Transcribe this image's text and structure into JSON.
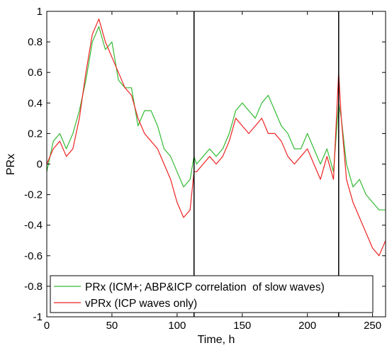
{
  "chart_data": {
    "type": "line",
    "title": "",
    "xlabel": "Time, h",
    "ylabel": "PRx",
    "xlim": [
      0,
      260
    ],
    "ylim": [
      -1,
      1
    ],
    "xticks": [
      0,
      50,
      100,
      150,
      200,
      250
    ],
    "yticks": [
      -1,
      -0.8,
      -0.6,
      -0.4,
      -0.2,
      0,
      0.2,
      0.4,
      0.6,
      0.8,
      1
    ],
    "ytick_labels": [
      "-1",
      "-0.8",
      "-0.6",
      "-0.4",
      "-0.2",
      "0",
      "0.2",
      "0.4",
      "0.6",
      "0.8",
      "1"
    ],
    "xtick_labels": [
      "0",
      "50",
      "100",
      "150",
      "200",
      "250"
    ],
    "vertical_lines": [
      113,
      224
    ],
    "grid": false,
    "legend_position": "bottom-left",
    "series": [
      {
        "name": "PRx (ICM+; ABP&ICP correlation  of slow waves)",
        "color": "#33bb33",
        "x": [
          0,
          5,
          10,
          15,
          20,
          25,
          30,
          35,
          40,
          45,
          50,
          55,
          60,
          65,
          70,
          75,
          80,
          85,
          90,
          95,
          100,
          105,
          110,
          113,
          115,
          120,
          125,
          130,
          135,
          140,
          145,
          150,
          155,
          160,
          165,
          170,
          175,
          180,
          185,
          190,
          195,
          200,
          205,
          210,
          215,
          220,
          224,
          226,
          230,
          235,
          240,
          245,
          250,
          255,
          260
        ],
        "values": [
          -0.05,
          0.15,
          0.2,
          0.1,
          0.2,
          0.35,
          0.55,
          0.8,
          0.9,
          0.75,
          0.8,
          0.55,
          0.5,
          0.5,
          0.25,
          0.35,
          0.35,
          0.25,
          0.1,
          0.05,
          -0.05,
          -0.15,
          -0.1,
          0.05,
          0.0,
          0.05,
          0.1,
          0.05,
          0.1,
          0.2,
          0.35,
          0.4,
          0.35,
          0.3,
          0.4,
          0.45,
          0.35,
          0.25,
          0.2,
          0.1,
          0.1,
          0.2,
          0.1,
          0.0,
          0.1,
          -0.05,
          0.4,
          0.3,
          0.0,
          -0.15,
          -0.1,
          -0.2,
          -0.25,
          -0.3,
          -0.3
        ]
      },
      {
        "name": "vPRx (ICP waves only)",
        "color": "#ee2222",
        "x": [
          0,
          5,
          10,
          15,
          20,
          25,
          30,
          35,
          40,
          45,
          50,
          55,
          60,
          65,
          70,
          75,
          80,
          85,
          90,
          95,
          100,
          105,
          110,
          113,
          115,
          120,
          125,
          130,
          135,
          140,
          145,
          150,
          155,
          160,
          165,
          170,
          175,
          180,
          185,
          190,
          195,
          200,
          205,
          210,
          215,
          220,
          224,
          226,
          230,
          235,
          240,
          245,
          250,
          255,
          260
        ],
        "values": [
          0.0,
          0.1,
          0.15,
          0.05,
          0.1,
          0.3,
          0.6,
          0.85,
          0.95,
          0.8,
          0.7,
          0.6,
          0.5,
          0.45,
          0.3,
          0.2,
          0.15,
          0.1,
          0.0,
          -0.1,
          -0.25,
          -0.35,
          -0.3,
          -0.05,
          -0.05,
          0.0,
          0.05,
          0.0,
          0.05,
          0.15,
          0.3,
          0.25,
          0.2,
          0.25,
          0.3,
          0.2,
          0.2,
          0.15,
          0.05,
          0.0,
          0.05,
          0.1,
          0.0,
          -0.1,
          0.05,
          -0.1,
          0.6,
          0.3,
          -0.1,
          -0.25,
          -0.35,
          -0.45,
          -0.55,
          -0.6,
          -0.5
        ]
      }
    ]
  }
}
